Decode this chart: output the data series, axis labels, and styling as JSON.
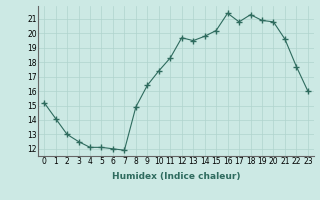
{
  "x": [
    0,
    1,
    2,
    3,
    4,
    5,
    6,
    7,
    8,
    9,
    10,
    11,
    12,
    13,
    14,
    15,
    16,
    17,
    18,
    19,
    20,
    21,
    22,
    23
  ],
  "y": [
    15.2,
    14.1,
    13.0,
    12.5,
    12.1,
    12.1,
    12.0,
    11.9,
    14.9,
    16.4,
    17.4,
    18.3,
    19.7,
    19.5,
    19.8,
    20.2,
    21.4,
    20.8,
    21.3,
    20.9,
    20.8,
    19.6,
    17.7,
    16.0
  ],
  "line_color": "#2e6b5e",
  "marker": "+",
  "marker_size": 4,
  "bg_color": "#cce9e4",
  "grid_color": "#b0d4ce",
  "xlabel": "Humidex (Indice chaleur)",
  "xlim": [
    -0.5,
    23.5
  ],
  "ylim": [
    11.5,
    21.9
  ],
  "yticks": [
    12,
    13,
    14,
    15,
    16,
    17,
    18,
    19,
    20,
    21
  ],
  "xticks": [
    0,
    1,
    2,
    3,
    4,
    5,
    6,
    7,
    8,
    9,
    10,
    11,
    12,
    13,
    14,
    15,
    16,
    17,
    18,
    19,
    20,
    21,
    22,
    23
  ],
  "tick_fontsize": 5.5,
  "label_fontsize": 6.5
}
